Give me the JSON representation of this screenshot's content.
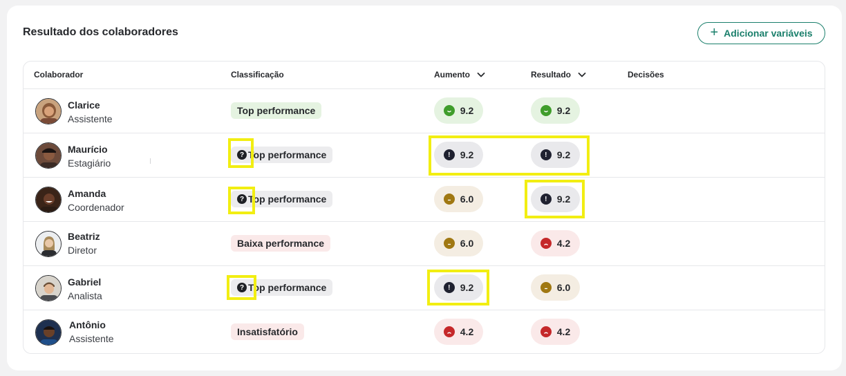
{
  "title": "Resultado dos colaboradores",
  "add_button": {
    "label": "Adicionar variáveis",
    "icon": "plus-icon"
  },
  "columns": {
    "colaborador": "Colaborador",
    "classificacao": "Classificação",
    "aumento": "Aumento",
    "resultado": "Resultado",
    "decisoes": "Decisões"
  },
  "rows": [
    {
      "name": "Clarice",
      "role": "Assistente",
      "classification": "Top performance",
      "aumento": "9.2",
      "resultado": "9.2"
    },
    {
      "name": "Maurício",
      "role": "Estagiário",
      "classification": "Top performance",
      "aumento": "9.2",
      "resultado": "9.2"
    },
    {
      "name": "Amanda",
      "role": "Coordenador",
      "classification": "Top performance",
      "aumento": "6.0",
      "resultado": "9.2"
    },
    {
      "name": "Beatriz",
      "role": "Diretor",
      "classification": "Baixa performance",
      "aumento": "6.0",
      "resultado": "4.2"
    },
    {
      "name": "Gabriel",
      "role": "Analista",
      "classification": "Top performance",
      "aumento": "9.2",
      "resultado": "6.0"
    },
    {
      "name": "Antônio",
      "role": "Assistente",
      "classification": "Insatisfatório",
      "aumento": "4.2",
      "resultado": "4.2"
    }
  ],
  "colors": {
    "accent": "#1a7f6b",
    "good": "#3f9d2b",
    "neutral": "#a07812",
    "bad": "#c5282a",
    "warning_icon": "#1f2130",
    "highlight": "#f2ee12"
  }
}
